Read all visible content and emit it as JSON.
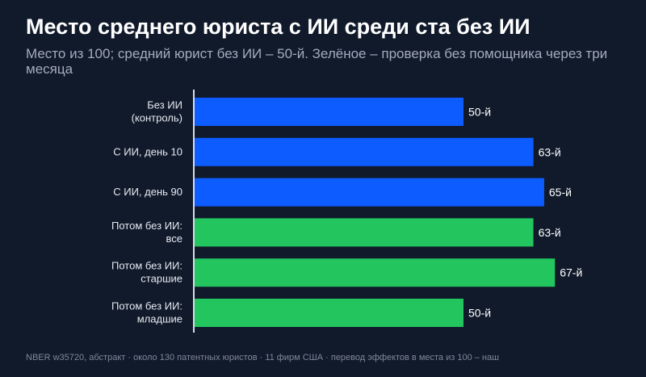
{
  "title": "Место среднего юриста с ИИ среди ста без ИИ",
  "subtitle": "Место из 100; средний юрист без ИИ – 50-й. Зелёное – проверка без помощника через три месяца",
  "footnote": "NBER w35720, абстракт · около 130 патентных юристов · 11 фирм США · перевод эффектов в места из 100 – наш",
  "colors": {
    "background": "#111a2b",
    "blue": "#0d5cff",
    "green": "#22c55e",
    "axis": "#d9dde6",
    "text": "#ffffff",
    "label": "#e6e9ef"
  },
  "chart_data": {
    "type": "bar",
    "orientation": "horizontal",
    "categories": [
      [
        "Без ИИ",
        "(контроль)"
      ],
      [
        "С ИИ, день 10"
      ],
      [
        "С ИИ, день 90"
      ],
      [
        "Потом без ИИ:",
        "все"
      ],
      [
        "Потом без ИИ:",
        "старшие"
      ],
      [
        "Потом без ИИ:",
        "младшие"
      ]
    ],
    "values": [
      50,
      63,
      65,
      63,
      67,
      50
    ],
    "value_labels": [
      "50-й",
      "63-й",
      "65-й",
      "63-й",
      "67-й",
      "50-й"
    ],
    "bar_colors": [
      "blue",
      "blue",
      "blue",
      "green",
      "green",
      "green"
    ],
    "xlim": [
      0,
      100
    ],
    "grid": false,
    "legend": "none"
  }
}
